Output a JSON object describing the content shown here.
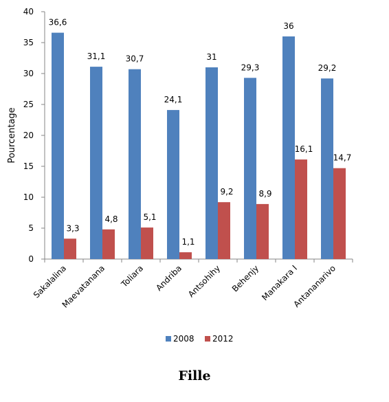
{
  "caption": "Fille",
  "chart_data": {
    "type": "bar",
    "categories": [
      "Sakalalina",
      "Maevatanana",
      "Toliara",
      "Andriba",
      "Antsohihy",
      "Behenjy",
      "Manakara I",
      "Antananarivo"
    ],
    "series": [
      {
        "name": "2008",
        "values": [
          36.6,
          31.1,
          30.7,
          24.1,
          31,
          29.3,
          36,
          29.2
        ],
        "labels": [
          "36,6",
          "31,1",
          "30,7",
          "24,1",
          "31",
          "29,3",
          "36",
          "29,2"
        ],
        "color": "#4f81bd"
      },
      {
        "name": "2012",
        "values": [
          3.3,
          4.8,
          5.1,
          1.1,
          9.2,
          8.9,
          16.1,
          14.7
        ],
        "labels": [
          "3,3",
          "4,8",
          "5,1",
          "1,1",
          "9,2",
          "8,9",
          "16,1",
          "14,7"
        ],
        "color": "#c0504d"
      }
    ],
    "ylabel": "Pourcentage",
    "ylim": [
      0,
      40
    ],
    "yticks": [
      0,
      5,
      10,
      15,
      20,
      25,
      30,
      35,
      40
    ],
    "grid": false,
    "legend": "bottom"
  }
}
